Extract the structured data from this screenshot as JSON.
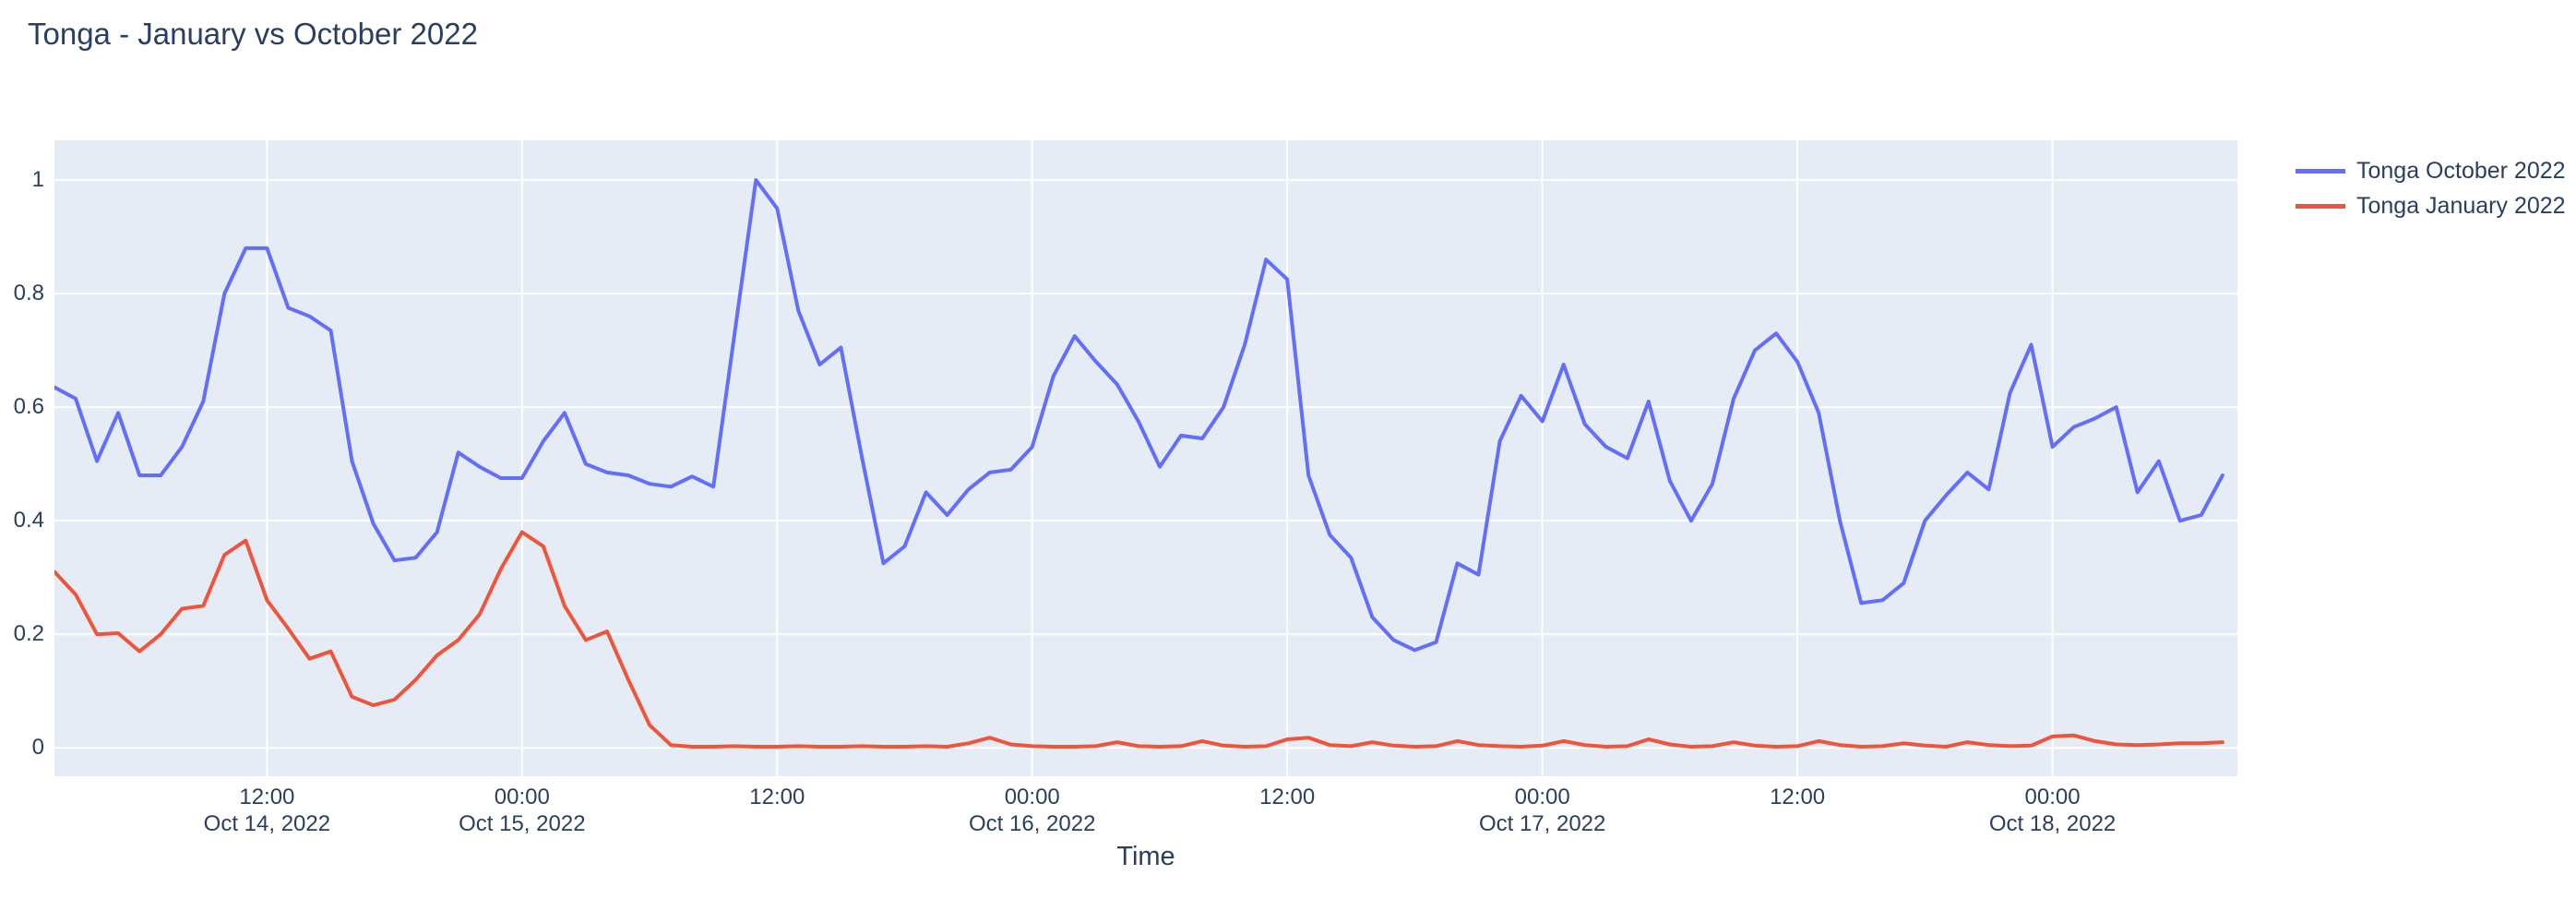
{
  "title": "Tonga - January vs October 2022",
  "xaxis": {
    "title": "Time"
  },
  "legend": {
    "items": [
      {
        "label": "Tonga October 2022",
        "color": "#636EFA"
      },
      {
        "label": "Tonga January 2022",
        "color": "#EF553B"
      }
    ]
  },
  "chart_data": {
    "type": "line",
    "title": "Tonga - January vs October 2022",
    "xlabel": "Time",
    "ylabel": "",
    "plot_bgcolor": "#E5ECF6",
    "gridcolor": "#FFFFFF",
    "text_color": "#2a3f5f",
    "grid": true,
    "legend_position": "outside-top-right",
    "x_start": "2022-10-14T02:00:00",
    "x_step_hours": 1,
    "x_count": 103,
    "xlim_index": [
      0,
      102.7
    ],
    "ylim": [
      -0.05,
      1.07
    ],
    "yticks": [
      {
        "value": 0,
        "label": "0"
      },
      {
        "value": 0.2,
        "label": "0.2"
      },
      {
        "value": 0.4,
        "label": "0.4"
      },
      {
        "value": 0.6,
        "label": "0.6"
      },
      {
        "value": 0.8,
        "label": "0.8"
      },
      {
        "value": 1,
        "label": "1"
      }
    ],
    "xticks": [
      {
        "index": 10,
        "lines": [
          "12:00",
          "Oct 14, 2022"
        ]
      },
      {
        "index": 22,
        "lines": [
          "00:00",
          "Oct 15, 2022"
        ]
      },
      {
        "index": 34,
        "lines": [
          "12:00"
        ]
      },
      {
        "index": 46,
        "lines": [
          "00:00",
          "Oct 16, 2022"
        ]
      },
      {
        "index": 58,
        "lines": [
          "12:00"
        ]
      },
      {
        "index": 70,
        "lines": [
          "00:00",
          "Oct 17, 2022"
        ]
      },
      {
        "index": 82,
        "lines": [
          "12:00"
        ]
      },
      {
        "index": 94,
        "lines": [
          "00:00",
          "Oct 18, 2022"
        ]
      }
    ],
    "series": [
      {
        "name": "Tonga October 2022",
        "color": "#636EFA",
        "values": [
          0.635,
          0.615,
          0.505,
          0.59,
          0.48,
          0.48,
          0.53,
          0.61,
          0.8,
          0.88,
          0.88,
          0.775,
          0.76,
          0.735,
          0.505,
          0.395,
          0.33,
          0.335,
          0.38,
          0.52,
          0.495,
          0.475,
          0.475,
          0.54,
          0.59,
          0.5,
          0.485,
          0.48,
          0.465,
          0.46,
          0.478,
          0.46,
          0.73,
          1.0,
          0.95,
          0.77,
          0.675,
          0.705,
          0.51,
          0.325,
          0.355,
          0.45,
          0.41,
          0.455,
          0.485,
          0.49,
          0.53,
          0.655,
          0.725,
          0.68,
          0.64,
          0.575,
          0.495,
          0.55,
          0.545,
          0.6,
          0.71,
          0.86,
          0.825,
          0.48,
          0.375,
          0.335,
          0.23,
          0.19,
          0.172,
          0.186,
          0.325,
          0.305,
          0.54,
          0.62,
          0.575,
          0.675,
          0.57,
          0.53,
          0.51,
          0.61,
          0.47,
          0.4,
          0.465,
          0.615,
          0.7,
          0.73,
          0.68,
          0.59,
          0.4,
          0.255,
          0.26,
          0.29,
          0.4,
          0.445,
          0.485,
          0.455,
          0.625,
          0.71,
          0.53,
          0.565,
          0.58,
          0.6,
          0.45,
          0.505,
          0.4,
          0.41,
          0.48
        ]
      },
      {
        "name": "Tonga January 2022",
        "color": "#EF553B",
        "values": [
          0.31,
          0.27,
          0.2,
          0.202,
          0.17,
          0.2,
          0.245,
          0.25,
          0.34,
          0.365,
          0.26,
          0.21,
          0.157,
          0.17,
          0.09,
          0.075,
          0.085,
          0.12,
          0.163,
          0.19,
          0.235,
          0.315,
          0.38,
          0.355,
          0.25,
          0.19,
          0.205,
          0.12,
          0.04,
          0.005,
          0.002,
          0.002,
          0.003,
          0.002,
          0.002,
          0.003,
          0.002,
          0.002,
          0.003,
          0.002,
          0.002,
          0.003,
          0.002,
          0.008,
          0.018,
          0.006,
          0.003,
          0.002,
          0.002,
          0.003,
          0.01,
          0.003,
          0.002,
          0.003,
          0.012,
          0.004,
          0.002,
          0.003,
          0.015,
          0.018,
          0.005,
          0.003,
          0.01,
          0.004,
          0.002,
          0.003,
          0.012,
          0.005,
          0.003,
          0.002,
          0.004,
          0.012,
          0.005,
          0.002,
          0.003,
          0.015,
          0.006,
          0.002,
          0.003,
          0.01,
          0.004,
          0.002,
          0.003,
          0.012,
          0.005,
          0.002,
          0.003,
          0.008,
          0.004,
          0.002,
          0.01,
          0.005,
          0.003,
          0.004,
          0.02,
          0.022,
          0.012,
          0.006,
          0.005,
          0.006,
          0.008,
          0.008,
          0.01
        ]
      }
    ]
  }
}
